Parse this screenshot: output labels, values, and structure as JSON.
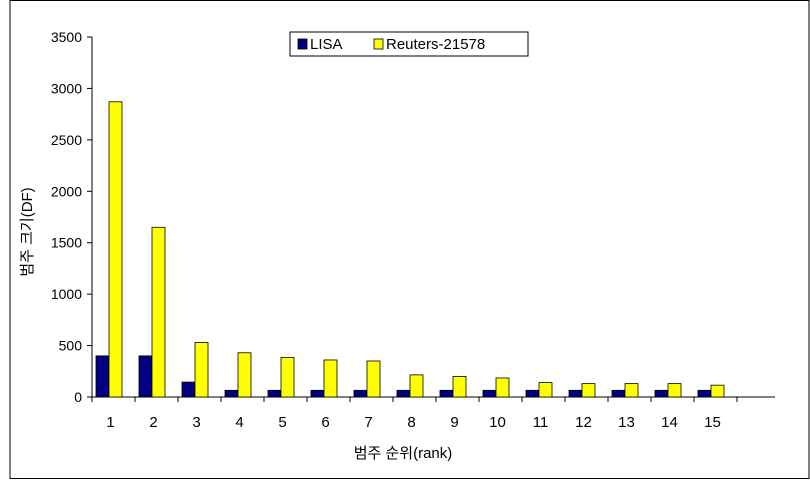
{
  "chart_data": {
    "type": "bar",
    "title": "",
    "xlabel": "범주 순위(rank)",
    "ylabel": "범주 크기(DF)",
    "ylim": [
      0,
      3500
    ],
    "yticks": [
      0,
      500,
      1000,
      1500,
      2000,
      2500,
      3000,
      3500
    ],
    "categories": [
      "1",
      "2",
      "3",
      "4",
      "5",
      "6",
      "7",
      "8",
      "9",
      "10",
      "11",
      "12",
      "13",
      "14",
      "15"
    ],
    "series": [
      {
        "name": "LISA",
        "color": "#000080",
        "values": [
          400,
          400,
          145,
          65,
          65,
          65,
          65,
          65,
          65,
          65,
          65,
          65,
          65,
          65,
          65
        ]
      },
      {
        "name": "Reuters-21578",
        "color": "#ffff00",
        "values": [
          2870,
          1650,
          530,
          430,
          385,
          360,
          350,
          215,
          200,
          185,
          140,
          130,
          130,
          130,
          115
        ]
      }
    ],
    "grid": false,
    "legend": "top-center"
  }
}
